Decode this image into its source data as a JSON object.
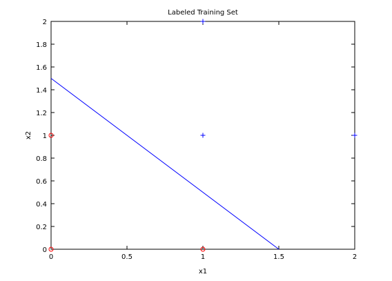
{
  "chart_data": {
    "type": "scatter",
    "title": "Labeled Training Set",
    "xlabel": "x1",
    "ylabel": "x2",
    "xlim": [
      0,
      2
    ],
    "ylim": [
      0,
      2
    ],
    "x_ticks": [
      0,
      0.5,
      1,
      1.5,
      2
    ],
    "x_tick_labels": [
      "0",
      "0.5",
      "1",
      "1.5",
      "2"
    ],
    "y_ticks": [
      0,
      0.2,
      0.4,
      0.6,
      0.8,
      1,
      1.2,
      1.4,
      1.6,
      1.8,
      2
    ],
    "y_tick_labels": [
      "0",
      "0.2",
      "0.4",
      "0.6",
      "0.8",
      "1",
      "1.2",
      "1.4",
      "1.6",
      "1.8",
      "2"
    ],
    "grid": false,
    "legend": "none",
    "series": [
      {
        "marker": "plus",
        "color": "#0000ff",
        "points": [
          [
            1,
            2
          ],
          [
            1,
            1
          ],
          [
            2,
            1
          ]
        ]
      },
      {
        "marker": "circle",
        "color": "#ff0000",
        "points": [
          [
            0,
            1
          ],
          [
            0,
            0
          ],
          [
            1,
            0
          ]
        ]
      }
    ],
    "lines": [
      {
        "color": "#0000ff",
        "points": [
          [
            0,
            1.5
          ],
          [
            1.5,
            0
          ]
        ]
      }
    ]
  }
}
